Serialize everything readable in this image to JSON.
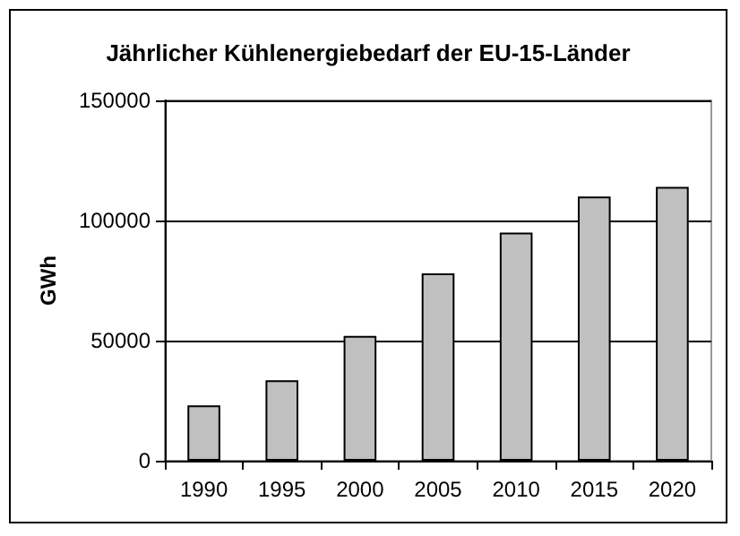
{
  "chart_data": {
    "type": "bar",
    "title": "Jährlicher Kühlenergiebedarf der EU-15-Länder",
    "ylabel": "GWh",
    "categories": [
      "1990",
      "1995",
      "2000",
      "2005",
      "2010",
      "2015",
      "2020"
    ],
    "values": [
      23000,
      33500,
      52000,
      78000,
      95000,
      110000,
      114000
    ],
    "color": "#c0c0c0",
    "ylim": [
      0,
      150000
    ],
    "yticks": [
      0,
      50000,
      100000,
      150000
    ],
    "grid": "y"
  }
}
